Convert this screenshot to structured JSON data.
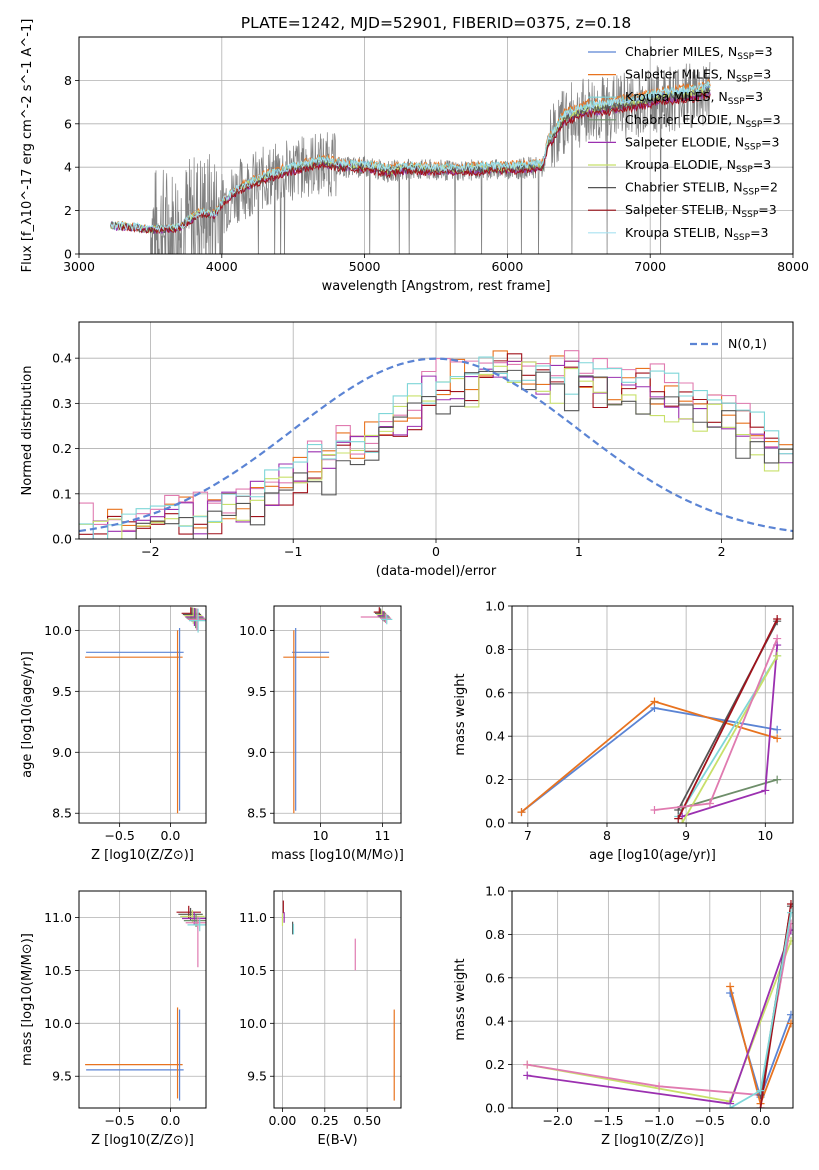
{
  "figure": {
    "title": "PLATE=1242, MJD=52901, FIBERID=0375, z=0.18"
  },
  "colors": {
    "Chabrier MILES": "#5b84d4",
    "Salpeter MILES": "#e8731f",
    "Kroupa MILES": "#7fd6d8",
    "Chabrier ELODIE": "#6e8e6a",
    "Salpeter ELODIE": "#9b30b0",
    "Kroupa ELODIE": "#c8e06a",
    "Chabrier STELIB": "#555555",
    "Salpeter STELIB": "#a0121b",
    "Kroupa STELIB": "#a8e2f0",
    "data": "#808080",
    "normal": "#5b84d4",
    "pink": "#e07bb0"
  },
  "chart_data": [
    {
      "id": "spectrum",
      "type": "line",
      "xlabel": "wavelength [Angstrom, rest frame]",
      "ylabel": "Flux [f_λ10^-17 erg cm^-2 s^-1 A^-1]",
      "xlim": [
        3000,
        8000
      ],
      "ylim": [
        0,
        10
      ],
      "xticks": [
        3000,
        4000,
        5000,
        6000,
        7000,
        8000
      ],
      "yticks": [
        0,
        2,
        4,
        6,
        8
      ],
      "legend_position": "top-right",
      "legend": [
        {
          "model": "Chabrier MILES",
          "nssp": "3"
        },
        {
          "model": "Salpeter MILES",
          "nssp": "3"
        },
        {
          "model": "Kroupa MILES",
          "nssp": "3"
        },
        {
          "model": "Chabrier ELODIE",
          "nssp": "3"
        },
        {
          "model": "Salpeter ELODIE",
          "nssp": "3"
        },
        {
          "model": "Kroupa ELODIE",
          "nssp": "3"
        },
        {
          "model": "Chabrier STELIB",
          "nssp": "2"
        },
        {
          "model": "Salpeter STELIB",
          "nssp": "3"
        },
        {
          "model": "Kroupa STELIB",
          "nssp": "3"
        }
      ],
      "model_curve": {
        "x": [
          3220,
          3400,
          3500,
          3700,
          3850,
          3950,
          4000,
          4100,
          4300,
          4500,
          4700,
          4860,
          5000,
          5170,
          5300,
          5500,
          5700,
          5900,
          6100,
          6250,
          6280,
          6400,
          6563,
          6700,
          6900,
          7100,
          7300,
          7420
        ],
        "y": [
          1.3,
          1.2,
          1.1,
          1.2,
          1.9,
          1.8,
          2.3,
          2.9,
          3.5,
          3.9,
          4.2,
          4.0,
          4.0,
          3.8,
          3.9,
          3.85,
          3.85,
          3.9,
          3.95,
          4.0,
          5.0,
          6.2,
          6.6,
          6.7,
          6.9,
          7.2,
          7.3,
          7.5
        ]
      },
      "series_offsets": {
        "Chabrier MILES": 0.15,
        "Salpeter MILES": 0.45,
        "Kroupa MILES": 0.35,
        "Chabrier ELODIE": 0.0,
        "Salpeter ELODIE": -0.1,
        "Kroupa ELODIE": 0.1,
        "Chabrier STELIB": 0.05,
        "Salpeter STELIB": -0.2,
        "Kroupa STELIB": 0.3
      }
    },
    {
      "id": "residuals",
      "type": "histogram",
      "xlabel": "(data-model)/error",
      "ylabel": "Normed distribution",
      "xlim": [
        -2.5,
        2.5
      ],
      "ylim": [
        0,
        0.48
      ],
      "xticks": [
        -2,
        -1,
        0,
        1,
        2
      ],
      "yticks": [
        0.0,
        0.1,
        0.2,
        0.3,
        0.4
      ],
      "legend_position": "top-right",
      "normal_label": "N(0,1)",
      "profile": {
        "x": [
          -2.5,
          -2.0,
          -1.5,
          -1.0,
          -0.5,
          0.0,
          0.5,
          1.0,
          1.5,
          2.0,
          2.5
        ],
        "y": [
          0.0,
          0.02,
          0.05,
          0.12,
          0.2,
          0.32,
          0.37,
          0.34,
          0.32,
          0.27,
          0.17
        ]
      },
      "series": [
        {
          "color_key": "Salpeter MILES",
          "offset": 0.02
        },
        {
          "color_key": "pink",
          "offset": 0.04
        },
        {
          "color_key": "Salpeter STELIB",
          "offset": 0.0
        },
        {
          "color_key": "Salpeter ELODIE",
          "offset": 0.01
        },
        {
          "color_key": "Kroupa ELODIE",
          "offset": -0.01
        },
        {
          "color_key": "Kroupa MILES",
          "offset": 0.02
        },
        {
          "color_key": "Chabrier STELIB",
          "offset": -0.02
        }
      ]
    },
    {
      "id": "age-vs-Z",
      "type": "scatter",
      "xlabel": "Z [log10(Z/Z⊙)]",
      "ylabel": "age [log10(age/yr)]",
      "xlim": [
        -0.9,
        0.35
      ],
      "ylim": [
        8.42,
        10.2
      ],
      "xticks": [
        -0.5,
        0.0
      ],
      "yticks": [
        8.5,
        9.0,
        9.5,
        10.0
      ]
    },
    {
      "id": "age-vs-mass",
      "type": "scatter",
      "xlabel": "mass [log10(M/M⊙)]",
      "ylabel": "",
      "xlim": [
        9.25,
        11.3
      ],
      "ylim": [
        8.42,
        10.2
      ],
      "xticks": [
        10,
        11
      ],
      "yticks": [
        8.5,
        9.0,
        9.5,
        10.0
      ]
    },
    {
      "id": "weight-vs-age",
      "type": "line",
      "xlabel": "age [log10(age/yr)]",
      "ylabel": "mass weight",
      "xlim": [
        6.8,
        10.35
      ],
      "ylim": [
        0,
        1.0
      ],
      "xticks": [
        7,
        8,
        9,
        10
      ],
      "yticks": [
        0.0,
        0.2,
        0.4,
        0.6,
        0.8,
        1.0
      ],
      "series": [
        {
          "color_key": "Chabrier MILES",
          "x": [
            6.92,
            8.6,
            10.15
          ],
          "y": [
            0.05,
            0.53,
            0.43
          ]
        },
        {
          "color_key": "Salpeter MILES",
          "x": [
            6.92,
            8.6,
            10.15
          ],
          "y": [
            0.05,
            0.56,
            0.39
          ]
        },
        {
          "color_key": "Kroupa MILES",
          "x": [
            8.9,
            10.15
          ],
          "y": [
            0.03,
            0.77
          ]
        },
        {
          "color_key": "Chabrier ELODIE",
          "x": [
            8.95,
            10.15
          ],
          "y": [
            0.07,
            0.2
          ]
        },
        {
          "color_key": "Salpeter ELODIE",
          "x": [
            8.95,
            10.0,
            10.15
          ],
          "y": [
            0.03,
            0.15,
            0.82
          ]
        },
        {
          "color_key": "Kroupa ELODIE",
          "x": [
            8.95,
            10.15
          ],
          "y": [
            0.0,
            0.77
          ]
        },
        {
          "color_key": "Chabrier STELIB",
          "x": [
            8.9,
            10.15
          ],
          "y": [
            0.06,
            0.93
          ]
        },
        {
          "color_key": "Salpeter STELIB",
          "x": [
            8.9,
            10.15
          ],
          "y": [
            0.02,
            0.94
          ]
        },
        {
          "color_key": "pink",
          "x": [
            8.6,
            9.3,
            10.15
          ],
          "y": [
            0.06,
            0.09,
            0.85
          ]
        }
      ]
    },
    {
      "id": "mass-vs-Z",
      "type": "scatter",
      "xlabel": "Z [log10(Z/Z⊙)]",
      "ylabel": "mass [log10(M/M⊙)]",
      "xlim": [
        -0.9,
        0.35
      ],
      "ylim": [
        9.2,
        11.25
      ],
      "xticks": [
        -0.5,
        0.0
      ],
      "yticks": [
        9.5,
        10.0,
        10.5,
        11.0
      ]
    },
    {
      "id": "mass-vs-EBV",
      "type": "scatter",
      "xlabel": "E(B-V)",
      "ylabel": "",
      "xlim": [
        -0.05,
        0.7
      ],
      "ylim": [
        9.2,
        11.25
      ],
      "xticks": [
        0.0,
        0.25,
        0.5
      ],
      "xtick_labels": [
        "0.00",
        "0.25",
        "0.50"
      ],
      "yticks": [
        9.5,
        10.0,
        10.5,
        11.0
      ]
    },
    {
      "id": "weight-vs-Z",
      "type": "line",
      "xlabel": "Z [log10(Z/Z⊙)]",
      "ylabel": "mass weight",
      "xlim": [
        -2.45,
        0.32
      ],
      "ylim": [
        0,
        1.0
      ],
      "xticks": [
        -2.0,
        -1.5,
        -1.0,
        -0.5,
        0.0
      ],
      "yticks": [
        0.0,
        0.2,
        0.4,
        0.6,
        0.8,
        1.0
      ],
      "series": [
        {
          "color_key": "Chabrier MILES",
          "x": [
            -0.3,
            0.0,
            0.3
          ],
          "y": [
            0.53,
            0.05,
            0.43
          ]
        },
        {
          "color_key": "Salpeter MILES",
          "x": [
            -0.3,
            0.0,
            0.3
          ],
          "y": [
            0.56,
            0.02,
            0.39
          ]
        },
        {
          "color_key": "Kroupa ELODIE",
          "x": [
            -2.3,
            -0.3,
            0.3
          ],
          "y": [
            0.2,
            0.03,
            0.77
          ]
        },
        {
          "color_key": "Salpeter ELODIE",
          "x": [
            -2.3,
            -0.3,
            0.3
          ],
          "y": [
            0.15,
            0.02,
            0.82
          ]
        },
        {
          "color_key": "pink",
          "x": [
            -2.3,
            -1.0,
            0.0,
            0.3
          ],
          "y": [
            0.2,
            0.1,
            0.06,
            0.85
          ]
        },
        {
          "color_key": "Chabrier STELIB",
          "x": [
            0.0,
            0.3
          ],
          "y": [
            0.06,
            0.93
          ]
        },
        {
          "color_key": "Salpeter STELIB",
          "x": [
            0.0,
            0.3
          ],
          "y": [
            0.0,
            0.94
          ]
        },
        {
          "color_key": "Kroupa MILES",
          "x": [
            -0.3,
            0.0,
            0.3
          ],
          "y": [
            0.0,
            0.08,
            0.9
          ]
        }
      ]
    }
  ]
}
